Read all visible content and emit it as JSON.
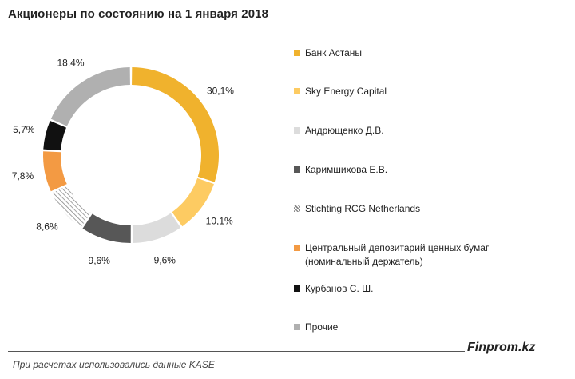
{
  "chart_data": {
    "type": "pie",
    "title": "Акционеры по состоянию  на 1 января 2018",
    "donut": true,
    "categories": [
      "Банк Астаны",
      "Sky Energy Capital",
      "Андрющенко Д.В.",
      "Каримшихова Е.В.",
      "Stichting RCG Netherlands",
      "Центральный депозитарий ценных бумаг\n(номинальный держатель)",
      "Курбанов С. Ш.",
      "Прочие"
    ],
    "values": [
      30.1,
      10.1,
      9.6,
      9.6,
      8.6,
      7.8,
      5.7,
      18.4
    ],
    "labels": [
      "30,1%",
      "10,1%",
      "9,6%",
      "9,6%",
      "8,6%",
      "7,8%",
      "5,7%",
      "18,4%"
    ],
    "colors": [
      "#F0B22D",
      "#FDCB62",
      "#DCDCDC",
      "#575757",
      "#FFFFFF",
      "#F39A43",
      "#111111",
      "#B0B0B0"
    ],
    "patterns": [
      "solid",
      "solid",
      "solid",
      "solid",
      "diagonal-hatch",
      "solid",
      "solid",
      "solid"
    ],
    "legend_position": "right"
  },
  "footer": {
    "brand": "Finprom.kz",
    "source": "При расчетах использовались данные KASE"
  }
}
